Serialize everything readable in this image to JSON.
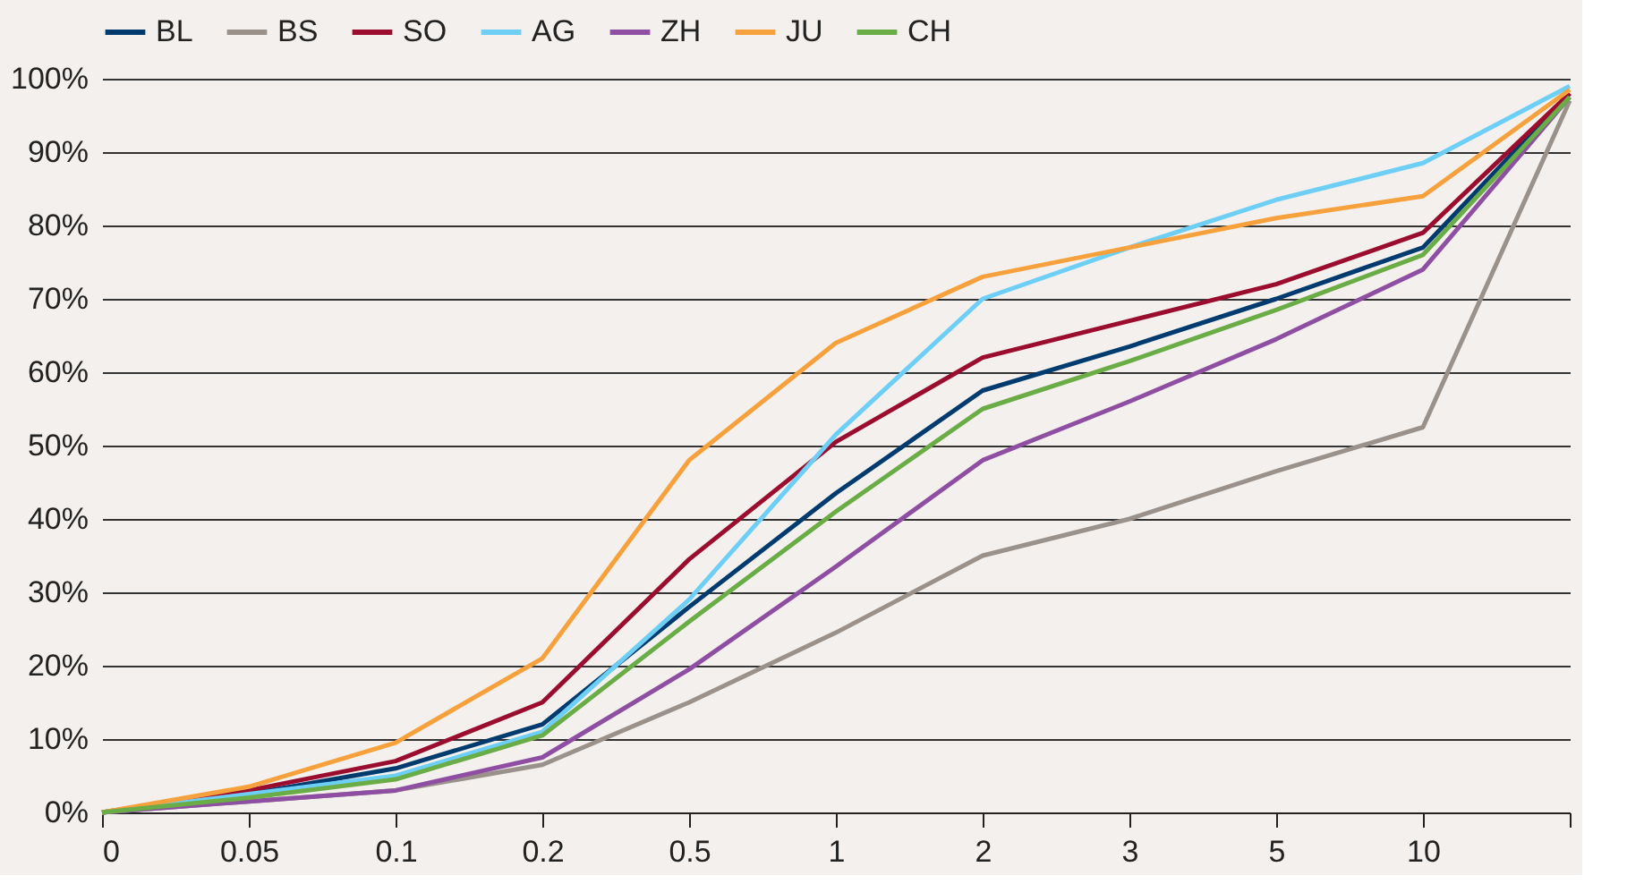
{
  "chart_data": {
    "type": "line",
    "categories": [
      "0",
      "0.05",
      "0.1",
      "0.2",
      "0.5",
      "1",
      "2",
      "3",
      "5",
      "10",
      null
    ],
    "series": [
      {
        "name": "BL",
        "color": "#003b6f",
        "values": [
          0,
          2.5,
          6,
          12,
          28,
          43.5,
          57.5,
          63.5,
          70,
          77,
          98
        ]
      },
      {
        "name": "BS",
        "color": "#9a918a",
        "values": [
          0,
          1.5,
          3,
          6.5,
          15,
          24.5,
          35,
          40,
          46.5,
          52.5,
          97
        ]
      },
      {
        "name": "SO",
        "color": "#9b0d2f",
        "values": [
          0,
          3,
          7,
          15,
          34.5,
          50.5,
          62,
          67,
          72,
          79,
          98
        ]
      },
      {
        "name": "AG",
        "color": "#6dcff6",
        "values": [
          0,
          2.5,
          5,
          11,
          29,
          51.5,
          70,
          77,
          83.5,
          88.5,
          99
        ]
      },
      {
        "name": "ZH",
        "color": "#8e4fa3",
        "values": [
          0,
          1.5,
          3,
          7.5,
          19.5,
          33.5,
          48,
          56,
          64.5,
          74,
          97.5
        ]
      },
      {
        "name": "JU",
        "color": "#f7a13d",
        "values": [
          0,
          3.5,
          9.5,
          21,
          48,
          64,
          73,
          77,
          81,
          84,
          98.5
        ]
      },
      {
        "name": "CH",
        "color": "#6aac46",
        "values": [
          0,
          2,
          4.5,
          10.5,
          26,
          41,
          55,
          61.5,
          68.5,
          76,
          97.5
        ]
      }
    ],
    "ylim": [
      0,
      100
    ],
    "yticks": [
      {
        "value": 0,
        "label": "0%"
      },
      {
        "value": 10,
        "label": "10%"
      },
      {
        "value": 20,
        "label": "20%"
      },
      {
        "value": 30,
        "label": "30%"
      },
      {
        "value": 40,
        "label": "40%"
      },
      {
        "value": 50,
        "label": "50%"
      },
      {
        "value": 60,
        "label": "60%"
      },
      {
        "value": 70,
        "label": "70%"
      },
      {
        "value": 80,
        "label": "80%"
      },
      {
        "value": 90,
        "label": "90%"
      },
      {
        "value": 100,
        "label": "100%"
      }
    ],
    "grid": "y",
    "legend": "top",
    "marker": "none",
    "line_style": "solid"
  }
}
